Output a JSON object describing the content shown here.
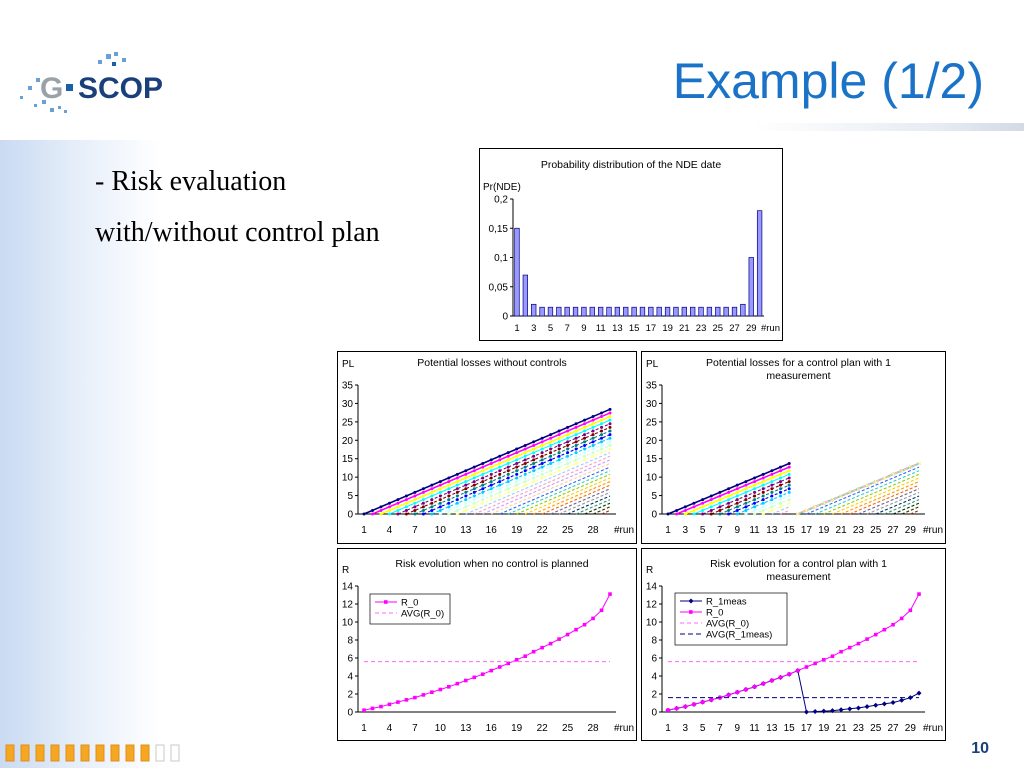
{
  "slide": {
    "title": "Example (1/2)",
    "text_line1": "- Risk evaluation",
    "text_line2": "with/without control plan",
    "page_number": "10",
    "logo_text_left": "G",
    "logo_text_right": "SCOP"
  },
  "colors": {
    "title": "#1a73c6",
    "bar_fill": "#9999ff",
    "magenta": "#ff00ff",
    "navy": "#000080",
    "footer_orange": "#f5a623"
  },
  "chart_data": [
    {
      "id": "nde",
      "type": "bar",
      "title": "Probability distribution of the NDE date",
      "ylabel": "Pr(NDE)",
      "xlabel": "#run",
      "ylim": [
        0,
        0.2
      ],
      "yticks": [
        "0",
        "0,05",
        "0,1",
        "0,15",
        "0,2"
      ],
      "categories": [
        1,
        2,
        3,
        4,
        5,
        6,
        7,
        8,
        9,
        10,
        11,
        12,
        13,
        14,
        15,
        16,
        17,
        18,
        19,
        20,
        21,
        22,
        23,
        24,
        25,
        26,
        27,
        28,
        29,
        30
      ],
      "xtick_labels": [
        "1",
        "3",
        "5",
        "7",
        "9",
        "11",
        "13",
        "15",
        "17",
        "19",
        "21",
        "23",
        "25",
        "27",
        "29"
      ],
      "values": [
        0.15,
        0.07,
        0.02,
        0.015,
        0.015,
        0.015,
        0.015,
        0.015,
        0.015,
        0.015,
        0.015,
        0.015,
        0.015,
        0.015,
        0.015,
        0.015,
        0.015,
        0.015,
        0.015,
        0.015,
        0.015,
        0.015,
        0.015,
        0.015,
        0.015,
        0.015,
        0.015,
        0.02,
        0.1,
        0.18
      ]
    },
    {
      "id": "pl-no-control",
      "type": "line",
      "title": "Potential losses without controls",
      "ylabel": "PL",
      "xlabel": "#run",
      "ylim": [
        0,
        35
      ],
      "yticks": [
        "0",
        "5",
        "10",
        "15",
        "20",
        "25",
        "30",
        "35"
      ],
      "xtick_labels": [
        "1",
        "4",
        "7",
        "10",
        "13",
        "16",
        "19",
        "22",
        "25",
        "28"
      ],
      "xtick_values": [
        1,
        4,
        7,
        10,
        13,
        16,
        19,
        22,
        25,
        28
      ],
      "xrange": [
        1,
        30
      ],
      "series_count": 30,
      "slope": 1,
      "break_at": null
    },
    {
      "id": "pl-control",
      "type": "line",
      "title": "Potential losses for a control plan with 1 measurement",
      "ylabel": "PL",
      "xlabel": "#run",
      "ylim": [
        0,
        35
      ],
      "yticks": [
        "0",
        "5",
        "10",
        "15",
        "20",
        "25",
        "30",
        "35"
      ],
      "xtick_labels": [
        "1",
        "3",
        "5",
        "7",
        "9",
        "11",
        "13",
        "15",
        "17",
        "19",
        "21",
        "23",
        "25",
        "27",
        "29"
      ],
      "xtick_values": [
        1,
        3,
        5,
        7,
        9,
        11,
        13,
        15,
        17,
        19,
        21,
        23,
        25,
        27,
        29
      ],
      "xrange": [
        1,
        30
      ],
      "series_count": 30,
      "slope": 1,
      "break_at": 15.5
    },
    {
      "id": "risk-no-control",
      "type": "line",
      "title": "Risk evolution when no control is planned",
      "ylabel": "R",
      "xlabel": "#run",
      "ylim": [
        0,
        14
      ],
      "yticks": [
        "0",
        "2",
        "4",
        "6",
        "8",
        "10",
        "12",
        "14"
      ],
      "xtick_labels": [
        "1",
        "4",
        "7",
        "10",
        "13",
        "16",
        "19",
        "22",
        "25",
        "28"
      ],
      "xtick_values": [
        1,
        4,
        7,
        10,
        13,
        16,
        19,
        22,
        25,
        28
      ],
      "xrange": [
        1,
        30
      ],
      "legend": [
        "R_0",
        "AVG(R_0)"
      ],
      "series": [
        {
          "name": "R_0",
          "x": [
            1,
            2,
            3,
            4,
            5,
            6,
            7,
            8,
            9,
            10,
            11,
            12,
            13,
            14,
            15,
            16,
            17,
            18,
            19,
            20,
            21,
            22,
            23,
            24,
            25,
            26,
            27,
            28,
            29,
            30
          ],
          "values": [
            0.2,
            0.4,
            0.6,
            0.85,
            1.1,
            1.35,
            1.6,
            1.9,
            2.2,
            2.5,
            2.8,
            3.15,
            3.5,
            3.85,
            4.2,
            4.6,
            5.0,
            5.4,
            5.8,
            6.2,
            6.7,
            7.15,
            7.6,
            8.1,
            8.6,
            9.15,
            9.7,
            10.4,
            11.3,
            13.1
          ]
        },
        {
          "name": "AVG(R_0)",
          "x": [
            1,
            30
          ],
          "values": [
            5.6,
            5.6
          ]
        }
      ]
    },
    {
      "id": "risk-control",
      "type": "line",
      "title": "Risk evolution for a control plan with 1 measurement",
      "ylabel": "R",
      "xlabel": "#run",
      "ylim": [
        0,
        14
      ],
      "yticks": [
        "0",
        "2",
        "4",
        "6",
        "8",
        "10",
        "12",
        "14"
      ],
      "xtick_labels": [
        "1",
        "3",
        "5",
        "7",
        "9",
        "11",
        "13",
        "15",
        "17",
        "19",
        "21",
        "23",
        "25",
        "27",
        "29"
      ],
      "xtick_values": [
        1,
        3,
        5,
        7,
        9,
        11,
        13,
        15,
        17,
        19,
        21,
        23,
        25,
        27,
        29
      ],
      "xrange": [
        1,
        30
      ],
      "legend": [
        "R_1meas",
        "R_0",
        "AVG(R_0)",
        "AVG(R_1meas)"
      ],
      "series": [
        {
          "name": "R_1meas",
          "x": [
            1,
            2,
            3,
            4,
            5,
            6,
            7,
            8,
            9,
            10,
            11,
            12,
            13,
            14,
            15,
            16,
            17,
            18,
            19,
            20,
            21,
            22,
            23,
            24,
            25,
            26,
            27,
            28,
            29,
            30
          ],
          "values": [
            0.2,
            0.4,
            0.6,
            0.85,
            1.1,
            1.35,
            1.6,
            1.9,
            2.2,
            2.5,
            2.8,
            3.15,
            3.5,
            3.85,
            4.2,
            4.6,
            0.0,
            0.05,
            0.1,
            0.15,
            0.25,
            0.35,
            0.45,
            0.6,
            0.75,
            0.9,
            1.05,
            1.3,
            1.6,
            2.1
          ]
        },
        {
          "name": "R_0",
          "x": [
            1,
            2,
            3,
            4,
            5,
            6,
            7,
            8,
            9,
            10,
            11,
            12,
            13,
            14,
            15,
            16,
            17,
            18,
            19,
            20,
            21,
            22,
            23,
            24,
            25,
            26,
            27,
            28,
            29,
            30
          ],
          "values": [
            0.2,
            0.4,
            0.6,
            0.85,
            1.1,
            1.35,
            1.6,
            1.9,
            2.2,
            2.5,
            2.8,
            3.15,
            3.5,
            3.85,
            4.2,
            4.6,
            5.0,
            5.4,
            5.8,
            6.2,
            6.7,
            7.15,
            7.6,
            8.1,
            8.6,
            9.15,
            9.7,
            10.4,
            11.3,
            13.1
          ]
        },
        {
          "name": "AVG(R_0)",
          "x": [
            1,
            30
          ],
          "values": [
            5.6,
            5.6
          ]
        },
        {
          "name": "AVG(R_1meas)",
          "x": [
            1,
            30
          ],
          "values": [
            1.6,
            1.6
          ]
        }
      ]
    }
  ]
}
